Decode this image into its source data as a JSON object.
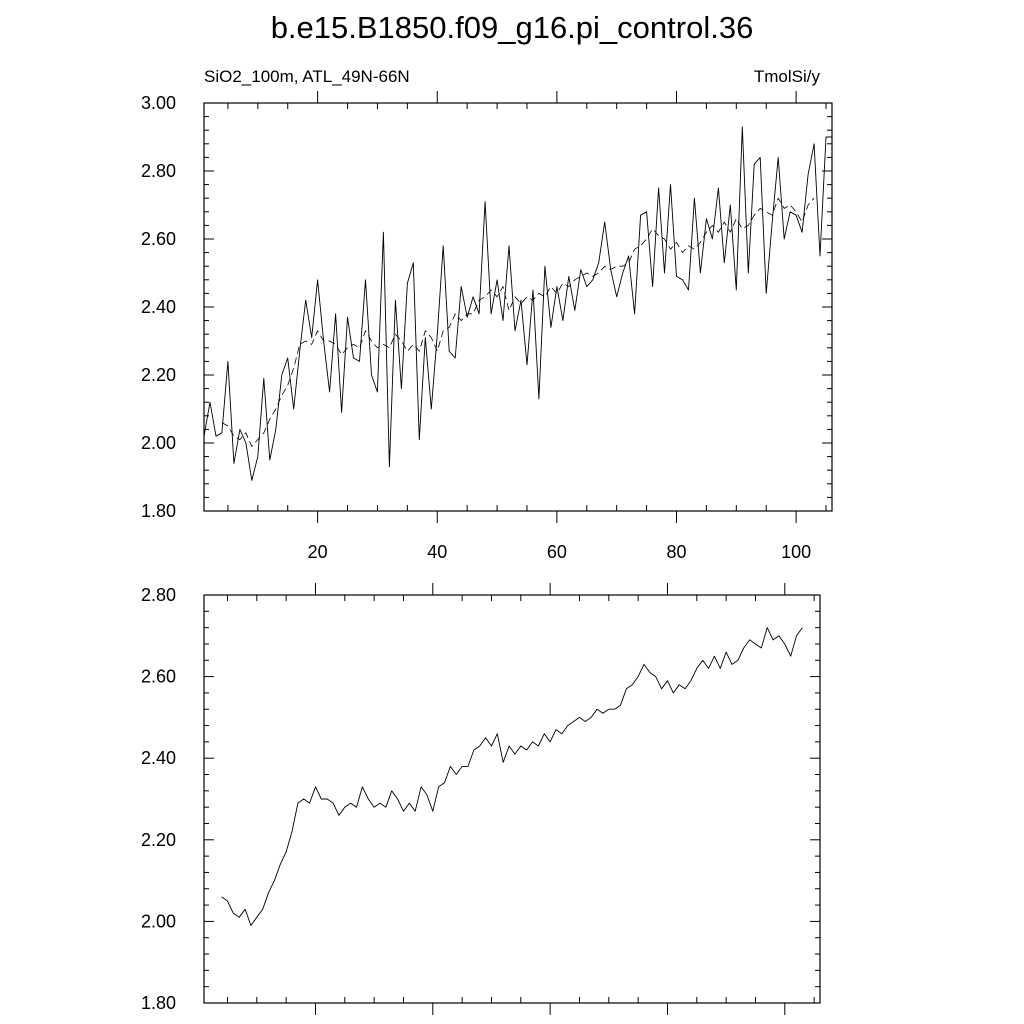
{
  "figure": {
    "title": "b.e15.B1850.f09_g16.pi_control.36"
  },
  "chart_data": [
    {
      "type": "line",
      "subtitle_left": "SiO2_100m, ATL_49N-66N",
      "subtitle_right": "TmolSi/y",
      "xlim": [
        1,
        106
      ],
      "ylim": [
        1.8,
        3.0
      ],
      "xticks": [
        20,
        40,
        60,
        80,
        100
      ],
      "xtick_labels": [
        "20",
        "40",
        "60",
        "80",
        "100"
      ],
      "yticks": [
        1.8,
        2.0,
        2.2,
        2.4,
        2.6,
        2.8,
        3.0
      ],
      "ytick_labels": [
        "1.80",
        "2.00",
        "2.20",
        "2.40",
        "2.60",
        "2.80",
        "3.00"
      ],
      "grid": false,
      "series": [
        {
          "style": "solid",
          "x": [
            1,
            2,
            3,
            4,
            5,
            6,
            7,
            8,
            9,
            10,
            11,
            12,
            13,
            14,
            15,
            16,
            17,
            18,
            19,
            20,
            21,
            22,
            23,
            24,
            25,
            26,
            27,
            28,
            29,
            30,
            31,
            32,
            33,
            34,
            35,
            36,
            37,
            38,
            39,
            40,
            41,
            42,
            43,
            44,
            45,
            46,
            47,
            48,
            49,
            50,
            51,
            52,
            53,
            54,
            55,
            56,
            57,
            58,
            59,
            60,
            61,
            62,
            63,
            64,
            65,
            66,
            67,
            68,
            69,
            70,
            71,
            72,
            73,
            74,
            75,
            76,
            77,
            78,
            79,
            80,
            81,
            82,
            83,
            84,
            85,
            86,
            87,
            88,
            89,
            90,
            91,
            92,
            93,
            94,
            95,
            96,
            97,
            98,
            99,
            100,
            101,
            102,
            103,
            104,
            105,
            106
          ],
          "y": [
            2.02,
            2.12,
            2.02,
            2.03,
            2.24,
            1.94,
            2.04,
            2.0,
            1.89,
            1.96,
            2.19,
            1.95,
            2.04,
            2.2,
            2.25,
            2.1,
            2.27,
            2.42,
            2.31,
            2.48,
            2.3,
            2.15,
            2.38,
            2.09,
            2.37,
            2.25,
            2.24,
            2.48,
            2.2,
            2.15,
            2.62,
            1.93,
            2.42,
            2.16,
            2.47,
            2.53,
            2.01,
            2.31,
            2.1,
            2.32,
            2.58,
            2.27,
            2.25,
            2.46,
            2.37,
            2.43,
            2.38,
            2.71,
            2.38,
            2.48,
            2.36,
            2.58,
            2.33,
            2.42,
            2.23,
            2.45,
            2.13,
            2.52,
            2.34,
            2.46,
            2.36,
            2.49,
            2.39,
            2.51,
            2.46,
            2.48,
            2.53,
            2.65,
            2.51,
            2.43,
            2.5,
            2.55,
            2.38,
            2.67,
            2.68,
            2.46,
            2.75,
            2.5,
            2.76,
            2.49,
            2.48,
            2.45,
            2.72,
            2.5,
            2.66,
            2.6,
            2.75,
            2.53,
            2.7,
            2.45,
            2.93,
            2.5,
            2.82,
            2.84,
            2.44,
            2.65,
            2.84,
            2.6,
            2.68,
            2.67,
            2.62,
            2.79,
            2.88,
            2.55,
            2.9,
            2.9
          ]
        },
        {
          "style": "dashed",
          "x": [
            4,
            5,
            6,
            7,
            8,
            9,
            10,
            11,
            12,
            13,
            14,
            15,
            16,
            17,
            18,
            19,
            20,
            21,
            22,
            23,
            24,
            25,
            26,
            27,
            28,
            29,
            30,
            31,
            32,
            33,
            34,
            35,
            36,
            37,
            38,
            39,
            40,
            41,
            42,
            43,
            44,
            45,
            46,
            47,
            48,
            49,
            50,
            51,
            52,
            53,
            54,
            55,
            56,
            57,
            58,
            59,
            60,
            61,
            62,
            63,
            64,
            65,
            66,
            67,
            68,
            69,
            70,
            71,
            72,
            73,
            74,
            75,
            76,
            77,
            78,
            79,
            80,
            81,
            82,
            83,
            84,
            85,
            86,
            87,
            88,
            89,
            90,
            91,
            92,
            93,
            94,
            95,
            96,
            97,
            98,
            99,
            100,
            101,
            102,
            103
          ],
          "y": [
            2.06,
            2.05,
            2.02,
            2.01,
            2.03,
            1.99,
            2.01,
            2.03,
            2.07,
            2.1,
            2.14,
            2.17,
            2.22,
            2.29,
            2.3,
            2.29,
            2.33,
            2.3,
            2.3,
            2.29,
            2.26,
            2.28,
            2.29,
            2.28,
            2.33,
            2.3,
            2.28,
            2.29,
            2.28,
            2.32,
            2.3,
            2.27,
            2.29,
            2.27,
            2.33,
            2.31,
            2.27,
            2.33,
            2.34,
            2.38,
            2.36,
            2.38,
            2.38,
            2.42,
            2.43,
            2.45,
            2.43,
            2.46,
            2.39,
            2.43,
            2.41,
            2.43,
            2.42,
            2.44,
            2.43,
            2.46,
            2.44,
            2.47,
            2.46,
            2.48,
            2.49,
            2.5,
            2.49,
            2.5,
            2.52,
            2.51,
            2.52,
            2.52,
            2.53,
            2.57,
            2.58,
            2.6,
            2.63,
            2.61,
            2.6,
            2.57,
            2.59,
            2.56,
            2.58,
            2.57,
            2.59,
            2.62,
            2.64,
            2.62,
            2.65,
            2.62,
            2.66,
            2.63,
            2.64,
            2.67,
            2.69,
            2.68,
            2.67,
            2.72,
            2.69,
            2.7,
            2.68,
            2.65,
            2.7,
            2.72
          ]
        }
      ]
    },
    {
      "type": "line",
      "xlim": [
        1,
        106
      ],
      "ylim": [
        1.8,
        2.8
      ],
      "xticks": [
        20,
        40,
        60,
        80,
        100
      ],
      "yticks": [
        1.8,
        2.0,
        2.2,
        2.4,
        2.6,
        2.8
      ],
      "ytick_labels": [
        "1.80",
        "2.00",
        "2.20",
        "2.40",
        "2.60",
        "2.80"
      ],
      "grid": false,
      "series": [
        {
          "style": "solid",
          "x": [
            4,
            5,
            6,
            7,
            8,
            9,
            10,
            11,
            12,
            13,
            14,
            15,
            16,
            17,
            18,
            19,
            20,
            21,
            22,
            23,
            24,
            25,
            26,
            27,
            28,
            29,
            30,
            31,
            32,
            33,
            34,
            35,
            36,
            37,
            38,
            39,
            40,
            41,
            42,
            43,
            44,
            45,
            46,
            47,
            48,
            49,
            50,
            51,
            52,
            53,
            54,
            55,
            56,
            57,
            58,
            59,
            60,
            61,
            62,
            63,
            64,
            65,
            66,
            67,
            68,
            69,
            70,
            71,
            72,
            73,
            74,
            75,
            76,
            77,
            78,
            79,
            80,
            81,
            82,
            83,
            84,
            85,
            86,
            87,
            88,
            89,
            90,
            91,
            92,
            93,
            94,
            95,
            96,
            97,
            98,
            99,
            100,
            101,
            102,
            103
          ],
          "y": [
            2.06,
            2.05,
            2.02,
            2.01,
            2.03,
            1.99,
            2.01,
            2.03,
            2.07,
            2.1,
            2.14,
            2.17,
            2.22,
            2.29,
            2.3,
            2.29,
            2.33,
            2.3,
            2.3,
            2.29,
            2.26,
            2.28,
            2.29,
            2.28,
            2.33,
            2.3,
            2.28,
            2.29,
            2.28,
            2.32,
            2.3,
            2.27,
            2.29,
            2.27,
            2.33,
            2.31,
            2.27,
            2.33,
            2.34,
            2.38,
            2.36,
            2.38,
            2.38,
            2.42,
            2.43,
            2.45,
            2.43,
            2.46,
            2.39,
            2.43,
            2.41,
            2.43,
            2.42,
            2.44,
            2.43,
            2.46,
            2.44,
            2.47,
            2.46,
            2.48,
            2.49,
            2.5,
            2.49,
            2.5,
            2.52,
            2.51,
            2.52,
            2.52,
            2.53,
            2.57,
            2.58,
            2.6,
            2.63,
            2.61,
            2.6,
            2.57,
            2.59,
            2.56,
            2.58,
            2.57,
            2.59,
            2.62,
            2.64,
            2.62,
            2.65,
            2.62,
            2.66,
            2.63,
            2.64,
            2.67,
            2.69,
            2.68,
            2.67,
            2.72,
            2.69,
            2.7,
            2.68,
            2.65,
            2.7,
            2.72
          ]
        }
      ]
    }
  ]
}
